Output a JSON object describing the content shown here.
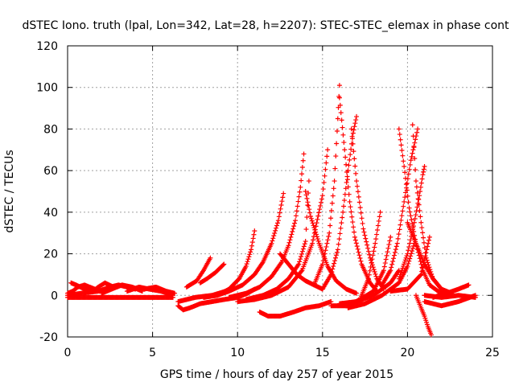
{
  "chart_data": {
    "type": "scatter",
    "title": "dSTEC Iono. truth (lpal, Lon=342, Lat=28, h=2207): STEC-STEC_elemax in phase cont",
    "xlabel": "GPS time / hours of day 257 of year 2015",
    "ylabel": "dSTEC  / TECUs",
    "xlim": [
      0,
      25
    ],
    "ylim": [
      -20,
      120
    ],
    "xticks": [
      0,
      5,
      10,
      15,
      20,
      25
    ],
    "yticks": [
      -20,
      0,
      20,
      40,
      60,
      80,
      100,
      120
    ],
    "xtick_labels": [
      "0",
      "5",
      "10",
      "15",
      "20",
      "25"
    ],
    "ytick_labels": [
      "-20",
      "0",
      "20",
      "40",
      "60",
      "80",
      "100",
      "120"
    ],
    "grid": true,
    "marker": "plus",
    "color": "#ff0000",
    "series": [
      {
        "x": [
          0,
          0.3,
          0.6,
          1.0,
          1.3,
          1.6,
          2.0
        ],
        "y": [
          1,
          2,
          4,
          5,
          4,
          3,
          2
        ]
      },
      {
        "x": [
          0.2,
          0.5,
          1.0,
          1.5,
          1.8,
          2.2,
          2.7
        ],
        "y": [
          6,
          5,
          3,
          2,
          4,
          6,
          4
        ]
      },
      {
        "x": [
          0,
          0.8,
          1.8,
          2.5,
          3.0,
          3.5,
          4.0
        ],
        "y": [
          0,
          1,
          2,
          4,
          5,
          4,
          3
        ]
      },
      {
        "x": [
          2.0,
          2.6,
          3.2,
          3.8,
          4.4
        ],
        "y": [
          1,
          3,
          5,
          4,
          2
        ]
      },
      {
        "x": [
          3.5,
          4.2,
          4.8,
          5.5,
          6.2
        ],
        "y": [
          2,
          4,
          3,
          2,
          0
        ]
      },
      {
        "x": [
          4.5,
          5.2,
          5.8,
          6.3
        ],
        "y": [
          3,
          4,
          2,
          1
        ]
      },
      {
        "x": [
          0,
          1.5,
          3,
          4.5,
          5.5,
          6.2
        ],
        "y": [
          -1,
          -1,
          -1,
          -1,
          -1,
          -1
        ]
      },
      {
        "x": [
          6.5,
          6.8,
          7.2,
          7.8,
          8.5,
          9.2,
          10.0,
          10.6,
          11.0
        ],
        "y": [
          -5,
          -7,
          -6,
          -4,
          -3,
          -2,
          -1,
          1,
          3
        ]
      },
      {
        "x": [
          7.0,
          7.6,
          8.0,
          8.4
        ],
        "y": [
          4,
          7,
          12,
          18
        ]
      },
      {
        "x": [
          7.8,
          8.2,
          8.7,
          9.2
        ],
        "y": [
          6,
          8,
          11,
          15
        ]
      },
      {
        "x": [
          6.5,
          7.5,
          8.5,
          9.3,
          9.8
        ],
        "y": [
          -3,
          -1,
          0,
          2,
          4
        ]
      },
      {
        "x": [
          8.0,
          8.8,
          9.5,
          10.1,
          10.5,
          10.8,
          11.0
        ],
        "y": [
          -1,
          0,
          3,
          8,
          14,
          22,
          31
        ]
      },
      {
        "x": [
          8.8,
          9.5,
          10.3,
          11.0,
          11.5,
          12.0,
          12.4,
          12.7
        ],
        "y": [
          0,
          2,
          5,
          10,
          16,
          25,
          36,
          49
        ]
      },
      {
        "x": [
          9.5,
          10.5,
          11.3,
          12.0,
          12.6,
          13.0,
          13.4,
          13.7,
          13.9
        ],
        "y": [
          -1,
          1,
          4,
          9,
          16,
          24,
          36,
          52,
          68
        ]
      },
      {
        "x": [
          10.5,
          11.5,
          12.3,
          13.0,
          13.6,
          14.0,
          14.2
        ],
        "y": [
          -2,
          0,
          3,
          8,
          15,
          26,
          55
        ]
      },
      {
        "x": [
          10.0,
          11.0,
          12.0,
          13.0,
          13.8,
          14.4,
          15.0,
          15.3
        ],
        "y": [
          -3,
          -2,
          0,
          4,
          12,
          25,
          48,
          70
        ]
      },
      {
        "x": [
          11.3,
          11.8,
          12.5,
          13.3,
          14.0,
          14.8,
          15.5
        ],
        "y": [
          -8,
          -10,
          -10,
          -8,
          -6,
          -5,
          -3
        ]
      },
      {
        "x": [
          12.5,
          13.0,
          13.5,
          14.0,
          14.5,
          15.0
        ],
        "y": [
          20,
          15,
          10,
          7,
          5,
          3
        ]
      },
      {
        "x": [
          14.0,
          14.3,
          14.8,
          15.3,
          15.8,
          16.4,
          17.0
        ],
        "y": [
          50,
          38,
          25,
          14,
          7,
          3,
          1
        ]
      },
      {
        "x": [
          14.5,
          15.0,
          15.4,
          15.7,
          15.9,
          16.0
        ],
        "y": [
          5,
          15,
          30,
          55,
          85,
          101
        ]
      },
      {
        "x": [
          15.0,
          15.5,
          15.9,
          16.2,
          16.5,
          16.8,
          17.0
        ],
        "y": [
          3,
          10,
          22,
          40,
          60,
          78,
          86
        ]
      },
      {
        "x": [
          16.0,
          16.3,
          16.6,
          16.9,
          17.3,
          17.8,
          18.2
        ],
        "y": [
          95,
          70,
          45,
          28,
          15,
          6,
          2
        ]
      },
      {
        "x": [
          16.7,
          17.0,
          17.4,
          17.8,
          18.2,
          18.6
        ],
        "y": [
          80,
          55,
          32,
          18,
          8,
          3
        ]
      },
      {
        "x": [
          15.5,
          16.5,
          17.2,
          17.7,
          18.1,
          18.4
        ],
        "y": [
          -5,
          -5,
          -2,
          8,
          25,
          40
        ]
      },
      {
        "x": [
          16.0,
          17.0,
          18.0,
          18.6,
          19.0
        ],
        "y": [
          -4,
          -3,
          2,
          12,
          28
        ]
      },
      {
        "x": [
          17.0,
          18.0,
          19.0,
          19.5
        ],
        "y": [
          -3,
          0,
          6,
          12
        ]
      },
      {
        "x": [
          16.5,
          17.5,
          18.5,
          19.5,
          20.0,
          20.4
        ],
        "y": [
          -6,
          -4,
          0,
          6,
          14,
          25
        ]
      },
      {
        "x": [
          18.5,
          19.0,
          19.4,
          19.8,
          20.2,
          20.6
        ],
        "y": [
          5,
          12,
          25,
          45,
          65,
          80
        ]
      },
      {
        "x": [
          19.5,
          19.8,
          20.1,
          20.5,
          20.9,
          21.3,
          21.8,
          22.5
        ],
        "y": [
          80,
          62,
          42,
          25,
          12,
          5,
          2,
          0
        ]
      },
      {
        "x": [
          20.3,
          20.5,
          20.8,
          21.1,
          21.5,
          22.0,
          22.6
        ],
        "y": [
          82,
          55,
          35,
          18,
          8,
          3,
          1
        ]
      },
      {
        "x": [
          19.5,
          20.0,
          20.4,
          20.7,
          20.9,
          21.0
        ],
        "y": [
          8,
          20,
          35,
          48,
          58,
          62
        ]
      },
      {
        "x": [
          20.0,
          20.5,
          21.0,
          21.5,
          22.0
        ],
        "y": [
          35,
          25,
          15,
          8,
          3
        ]
      },
      {
        "x": [
          20.5,
          20.8,
          21.0,
          21.2,
          21.4
        ],
        "y": [
          0,
          -6,
          -10,
          -15,
          -19
        ]
      },
      {
        "x": [
          19.0,
          20.0,
          20.8,
          21.3
        ],
        "y": [
          2,
          3,
          10,
          28
        ]
      },
      {
        "x": [
          21.0,
          22.0,
          23.0,
          24.0
        ],
        "y": [
          -3,
          -5,
          -3,
          0
        ]
      },
      {
        "x": [
          21.5,
          22.3,
          23.0,
          23.6
        ],
        "y": [
          -1,
          1,
          3,
          5
        ]
      },
      {
        "x": [
          21.0,
          22.0,
          23.0,
          24.0
        ],
        "y": [
          0,
          -1,
          0,
          -1
        ]
      }
    ]
  }
}
